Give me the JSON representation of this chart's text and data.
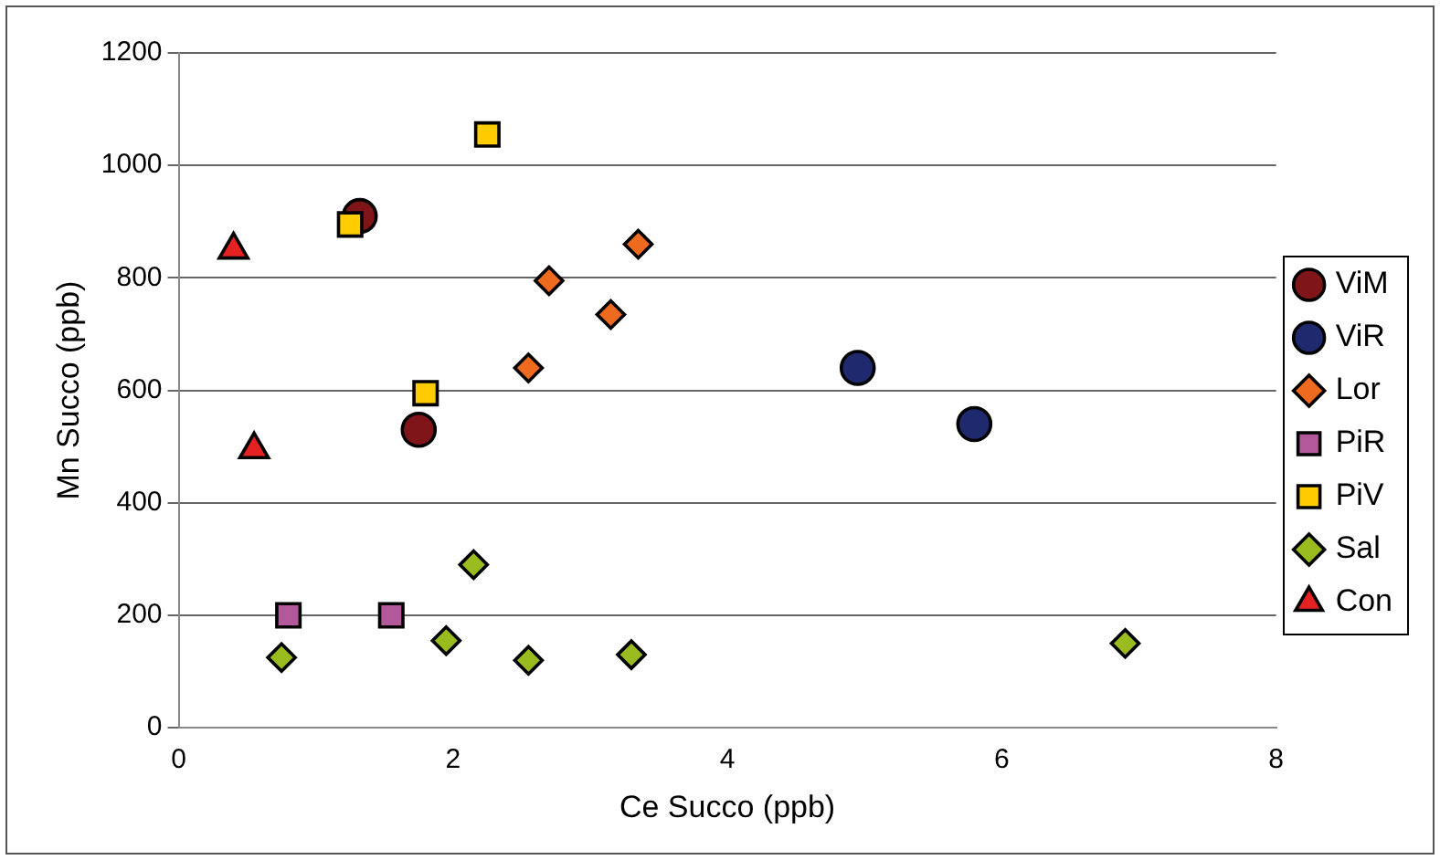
{
  "chart_data": {
    "type": "scatter",
    "xlabel": "Ce Succo (ppb)",
    "ylabel": "Mn Succo (ppb)",
    "xlim": [
      0,
      8
    ],
    "xticks": [
      0,
      2,
      4,
      6,
      8
    ],
    "ylim": [
      0,
      1200
    ],
    "yticks": [
      0,
      200,
      400,
      600,
      800,
      1000,
      1200
    ],
    "grid": "y",
    "legend": "right",
    "series": [
      {
        "name": "ViM",
        "color": "#7f1518",
        "marker": "circle",
        "x": [
          1.32,
          1.75
        ],
        "values": [
          910,
          530
        ]
      },
      {
        "name": "ViR",
        "color": "#1f2a6e",
        "marker": "circle",
        "x": [
          4.95,
          5.8
        ],
        "values": [
          640,
          540
        ]
      },
      {
        "name": "Lor",
        "color": "#ee6a1e",
        "marker": "diamond",
        "x": [
          2.55,
          2.7,
          3.15,
          3.35
        ],
        "values": [
          640,
          795,
          735,
          860
        ]
      },
      {
        "name": "PiR",
        "color": "#b4589c",
        "marker": "square",
        "x": [
          0.8,
          1.55
        ],
        "values": [
          200,
          200
        ]
      },
      {
        "name": "PiV",
        "color": "#ffcc00",
        "marker": "square",
        "x": [
          1.25,
          1.8,
          2.25
        ],
        "values": [
          895,
          595,
          1055
        ]
      },
      {
        "name": "Sal",
        "color": "#99bb1e",
        "marker": "diamond",
        "x": [
          0.75,
          1.95,
          2.15,
          2.55,
          3.3,
          6.9
        ],
        "values": [
          125,
          155,
          290,
          120,
          130,
          150
        ]
      },
      {
        "name": "Con",
        "color": "#e42222",
        "marker": "triangle",
        "x": [
          0.4,
          0.55
        ],
        "values": [
          850,
          495
        ]
      }
    ]
  }
}
